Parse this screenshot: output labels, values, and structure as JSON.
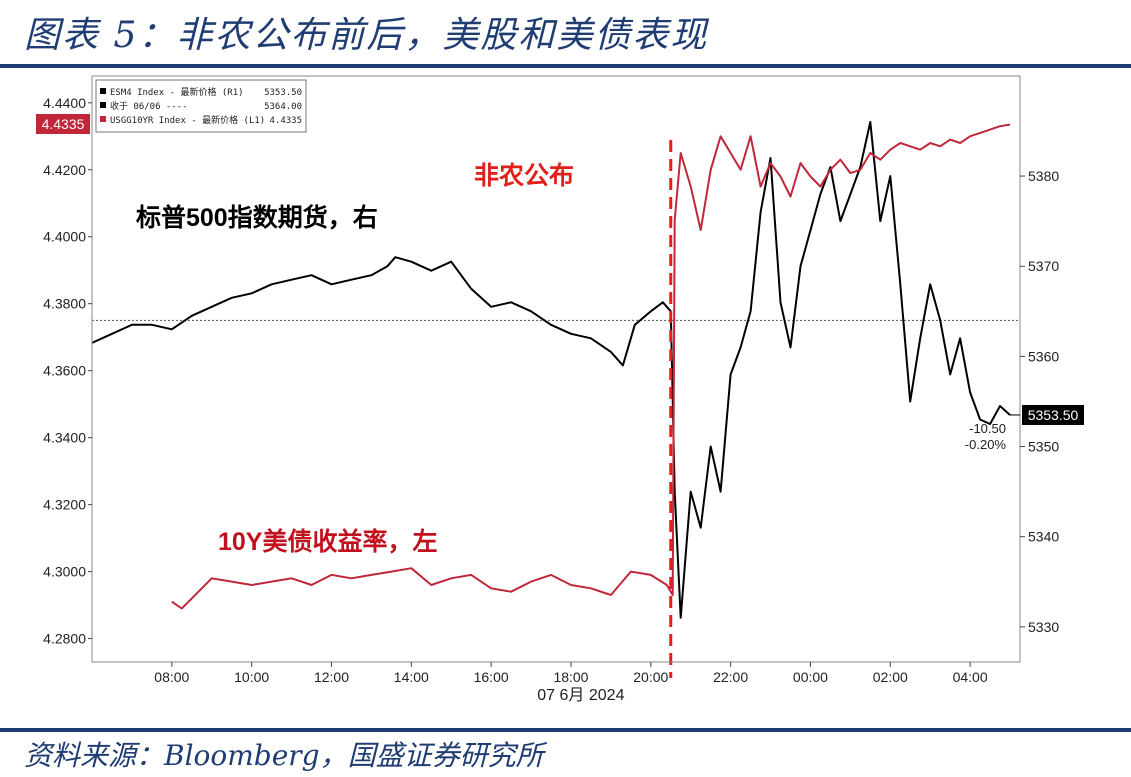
{
  "page": {
    "title": "图表 5：非农公布前后，美股和美债表现",
    "source": "资料来源：Bloomberg，国盛证券研究所"
  },
  "chart_data": {
    "type": "line",
    "annotations": {
      "spx": "标普500指数期货，右",
      "bond": "10Y美债收益率，左",
      "nfp": "非农公布"
    },
    "xaxis": {
      "ticks": [
        "08:00",
        "10:00",
        "12:00",
        "14:00",
        "16:00",
        "18:00",
        "20:00",
        "22:00",
        "00:00",
        "02:00",
        "04:00"
      ],
      "date_label": "07 6月 2024",
      "range": [
        6.0,
        29.25
      ]
    },
    "yaxis_left": {
      "ticks": [
        "4.4400",
        "4.4200",
        "4.4000",
        "4.3800",
        "4.3600",
        "4.3400",
        "4.3200",
        "4.3000",
        "4.2800"
      ],
      "range": [
        4.273,
        4.448
      ]
    },
    "yaxis_right": {
      "ticks": [
        "5380",
        "5370",
        "5360",
        "5350",
        "5340",
        "5330"
      ],
      "range": [
        5326.1,
        5391.1
      ]
    },
    "event_time": 20.5,
    "reference_level": 5364.0,
    "right_badge": "5353.50",
    "right_change": [
      "-10.50",
      "-0.20%"
    ],
    "left_badge": "4.4335",
    "legend": [
      {
        "name": "ESM4 Index - 最新价格 (R1)",
        "value": "5353.50",
        "color": "#000000"
      },
      {
        "name": "收于 06/06 ----",
        "value": "5364.00",
        "color": "#000000"
      },
      {
        "name": "USGG10YR Index - 最新价格 (L1)",
        "value": "4.4335",
        "color": "#c0273a"
      }
    ],
    "series": [
      {
        "name": "ESM4 Index",
        "axis": "right",
        "color": "#000000",
        "x": [
          6.0,
          6.5,
          7.0,
          7.5,
          8.0,
          8.5,
          9.0,
          9.5,
          10.0,
          10.5,
          11.0,
          11.5,
          12.0,
          12.5,
          13.0,
          13.4,
          13.6,
          14.0,
          14.5,
          15.0,
          15.5,
          16.0,
          16.5,
          17.0,
          17.5,
          18.0,
          18.5,
          19.0,
          19.3,
          19.6,
          20.0,
          20.3,
          20.5,
          20.6,
          20.75,
          21.0,
          21.25,
          21.5,
          21.75,
          22.0,
          22.25,
          22.5,
          22.75,
          23.0,
          23.25,
          23.5,
          23.75,
          24.0,
          24.25,
          24.5,
          24.75,
          25.0,
          25.25,
          25.5,
          25.75,
          26.0,
          26.25,
          26.5,
          26.75,
          27.0,
          27.25,
          27.5,
          27.75,
          28.0,
          28.25,
          28.5,
          28.75,
          29.0
        ],
        "y": [
          5361.5,
          5362.5,
          5363.5,
          5363.5,
          5363.0,
          5364.5,
          5365.5,
          5366.5,
          5367.0,
          5368.0,
          5368.5,
          5369.0,
          5368.0,
          5368.5,
          5369.0,
          5370.0,
          5371.0,
          5370.5,
          5369.5,
          5370.5,
          5367.5,
          5365.5,
          5366.0,
          5365.0,
          5363.5,
          5362.5,
          5362.0,
          5360.5,
          5359.0,
          5363.5,
          5365.0,
          5366.0,
          5365.0,
          5345.0,
          5331.0,
          5345.0,
          5341.0,
          5350.0,
          5345.0,
          5358.0,
          5361.0,
          5365.0,
          5376.0,
          5382.0,
          5366.0,
          5361.0,
          5370.0,
          5374.0,
          5378.0,
          5381.0,
          5375.0,
          5378.0,
          5381.0,
          5386.0,
          5375.0,
          5380.0,
          5368.0,
          5355.0,
          5362.0,
          5368.0,
          5364.0,
          5358.0,
          5362.0,
          5356.0,
          5353.0,
          5352.5,
          5354.5,
          5353.5
        ]
      },
      {
        "name": "USGG10YR Index",
        "axis": "left",
        "color": "#c0273a",
        "x": [
          8.0,
          8.25,
          8.5,
          9.0,
          9.5,
          10.0,
          10.5,
          11.0,
          11.5,
          12.0,
          12.5,
          13.0,
          13.5,
          14.0,
          14.5,
          15.0,
          15.5,
          16.0,
          16.5,
          17.0,
          17.5,
          18.0,
          18.5,
          19.0,
          19.5,
          20.0,
          20.4,
          20.55,
          20.6,
          20.75,
          21.0,
          21.25,
          21.5,
          21.75,
          22.0,
          22.25,
          22.5,
          22.75,
          23.0,
          23.25,
          23.5,
          23.75,
          24.0,
          24.25,
          24.5,
          24.75,
          25.0,
          25.25,
          25.5,
          25.75,
          26.0,
          26.25,
          26.5,
          26.75,
          27.0,
          27.25,
          27.5,
          27.75,
          28.0,
          28.25,
          28.5,
          28.75,
          29.0
        ],
        "y": [
          4.291,
          4.289,
          4.292,
          4.298,
          4.297,
          4.296,
          4.297,
          4.298,
          4.296,
          4.299,
          4.298,
          4.299,
          4.3,
          4.301,
          4.296,
          4.298,
          4.299,
          4.295,
          4.294,
          4.297,
          4.299,
          4.296,
          4.295,
          4.293,
          4.3,
          4.299,
          4.296,
          4.293,
          4.405,
          4.425,
          4.415,
          4.402,
          4.42,
          4.43,
          4.425,
          4.42,
          4.43,
          4.415,
          4.422,
          4.418,
          4.412,
          4.422,
          4.418,
          4.415,
          4.42,
          4.423,
          4.419,
          4.42,
          4.425,
          4.423,
          4.426,
          4.428,
          4.427,
          4.426,
          4.428,
          4.427,
          4.429,
          4.428,
          4.43,
          4.431,
          4.432,
          4.433,
          4.4335
        ]
      }
    ]
  }
}
